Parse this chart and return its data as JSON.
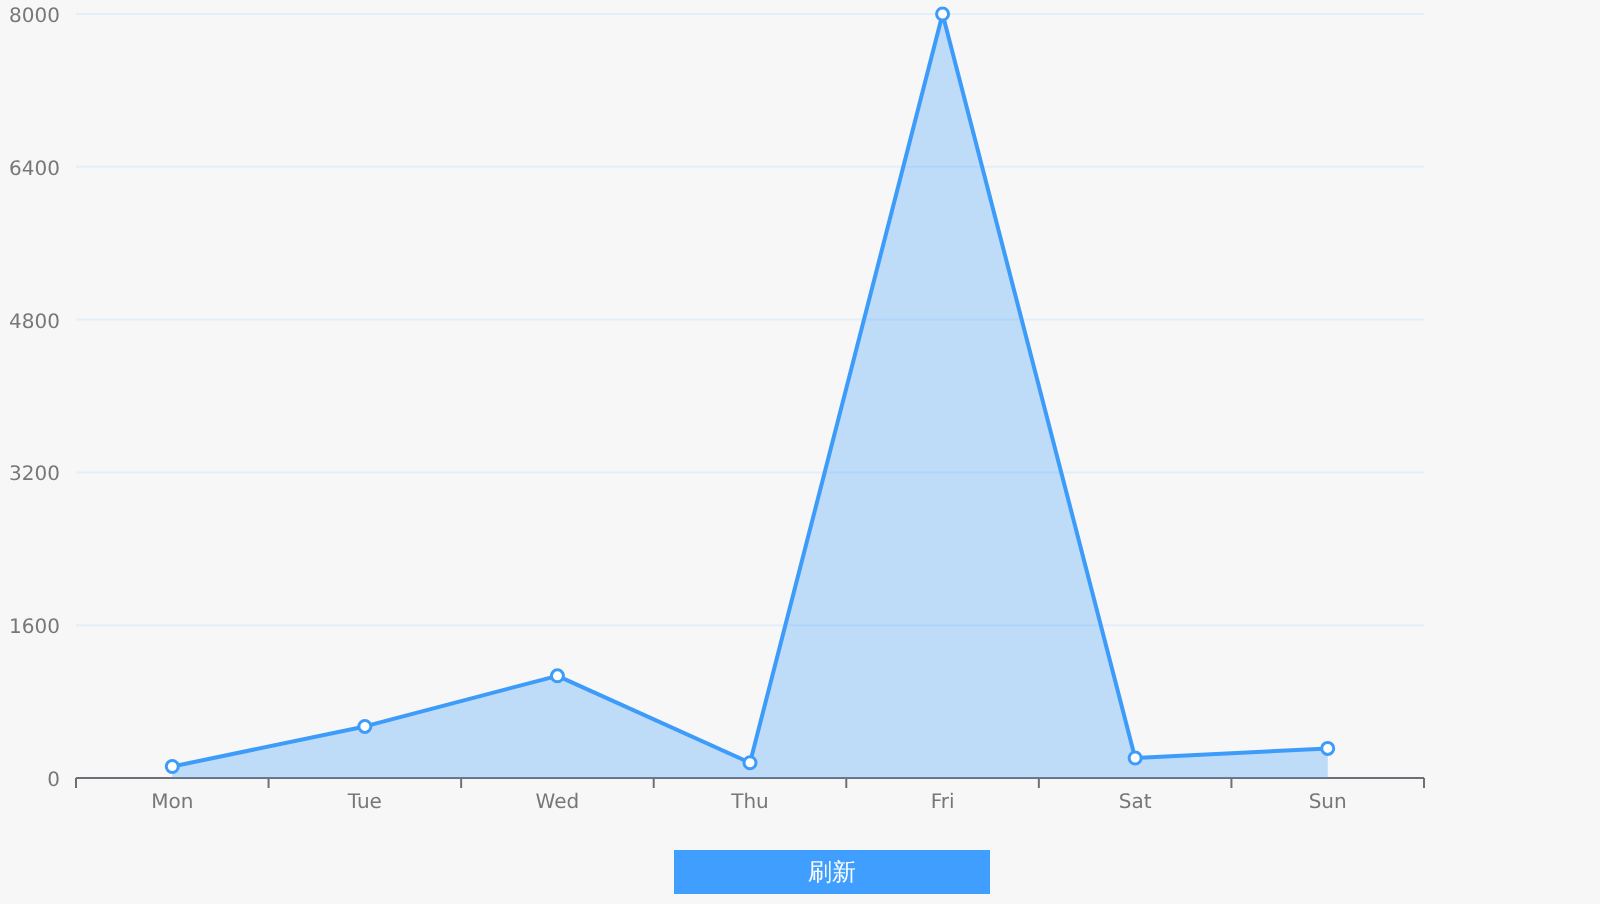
{
  "chart_data": {
    "type": "area",
    "categories": [
      "Mon",
      "Tue",
      "Wed",
      "Thu",
      "Fri",
      "Sat",
      "Sun"
    ],
    "series": [
      {
        "color": "#3d9cfa",
        "values": [
          120,
          540,
          1070,
          160,
          8000,
          210,
          310
        ]
      }
    ],
    "ylim": [
      0,
      8000
    ],
    "yticks": [
      0,
      1600,
      3200,
      4800,
      6400,
      8000
    ],
    "grid": "y",
    "marker": "circle",
    "annotations": [
      "刷新"
    ]
  }
}
